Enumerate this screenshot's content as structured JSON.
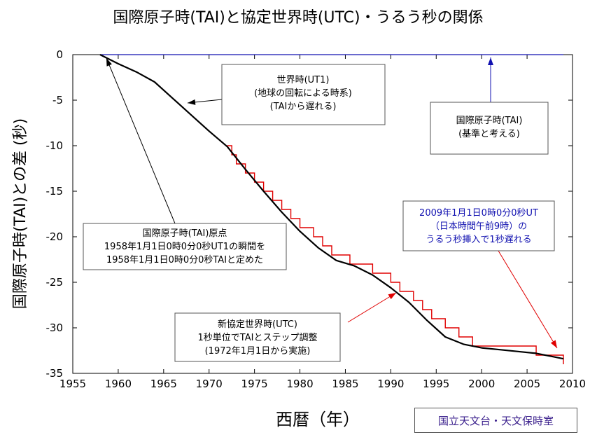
{
  "title": "国際原子時(TAI)と協定世界時(UTC)・うるう秒の関係",
  "credit": "国立天文台・天文保時室",
  "colors": {
    "tai": "#1010b0",
    "ut1": "#000000",
    "utc": "#e00000",
    "note_blue": "#1010b0"
  },
  "annotations": {
    "ut1": [
      "世界時(UT1)",
      "(地球の回転による時系)",
      "(TAIから遅れる)"
    ],
    "tai": [
      "国際原子時(TAI)",
      "(基準と考える)"
    ],
    "origin": [
      "国際原子時(TAI)原点",
      "1958年1月1日0時0分0秒UT1の瞬間を",
      "1958年1月1日0時0分0秒TAIと定めた"
    ],
    "leap2009": [
      "2009年1月1日0時0分0秒UT",
      "（日本時間午前9時）の",
      "うるう秒挿入で1秒遅れる"
    ],
    "utc": [
      "新協定世界時(UTC)",
      "1秒単位でTAIとステップ調整",
      "(1972年1月1日から実施)"
    ]
  },
  "chart_data": {
    "type": "line",
    "title": "国際原子時(TAI)と協定世界時(UTC)・うるう秒の関係",
    "xlabel": "西暦（年）",
    "ylabel": "国際原子時(TAI)との差 (秒)",
    "xlim": [
      1955,
      2010
    ],
    "ylim": [
      -35,
      0
    ],
    "xticks": [
      1955,
      1960,
      1965,
      1970,
      1975,
      1980,
      1985,
      1990,
      1995,
      2000,
      2005,
      2010
    ],
    "yticks": [
      0,
      -5,
      -10,
      -15,
      -20,
      -25,
      -30,
      -35
    ],
    "series": [
      {
        "name": "TAI",
        "x": [
          1958,
          2009
        ],
        "y": [
          0,
          0
        ]
      },
      {
        "name": "UT1",
        "x": [
          1958,
          1960,
          1962,
          1964,
          1966,
          1968,
          1970,
          1972,
          1974,
          1976,
          1978,
          1980,
          1982,
          1984,
          1986,
          1988,
          1990,
          1992,
          1994,
          1996,
          1998,
          2000,
          2002,
          2004,
          2006,
          2008,
          2009
        ],
        "y": [
          0,
          -1.0,
          -1.9,
          -3.0,
          -4.8,
          -6.6,
          -8.4,
          -10.1,
          -12.6,
          -15.0,
          -17.3,
          -19.4,
          -21.2,
          -22.6,
          -23.2,
          -24.2,
          -25.6,
          -27.2,
          -29.2,
          -31.0,
          -31.8,
          -32.2,
          -32.4,
          -32.6,
          -32.8,
          -33.2,
          -33.4
        ]
      },
      {
        "name": "UTC",
        "steps": [
          {
            "year": 1972.0,
            "value": -10
          },
          {
            "year": 1972.5,
            "value": -11
          },
          {
            "year": 1973.0,
            "value": -12
          },
          {
            "year": 1974.0,
            "value": -13
          },
          {
            "year": 1975.0,
            "value": -14
          },
          {
            "year": 1976.0,
            "value": -15
          },
          {
            "year": 1977.0,
            "value": -16
          },
          {
            "year": 1978.0,
            "value": -17
          },
          {
            "year": 1979.0,
            "value": -18
          },
          {
            "year": 1980.0,
            "value": -19
          },
          {
            "year": 1981.5,
            "value": -20
          },
          {
            "year": 1982.5,
            "value": -21
          },
          {
            "year": 1983.5,
            "value": -22
          },
          {
            "year": 1985.5,
            "value": -23
          },
          {
            "year": 1988.0,
            "value": -24
          },
          {
            "year": 1990.0,
            "value": -25
          },
          {
            "year": 1991.0,
            "value": -26
          },
          {
            "year": 1992.5,
            "value": -27
          },
          {
            "year": 1993.5,
            "value": -28
          },
          {
            "year": 1994.5,
            "value": -29
          },
          {
            "year": 1996.0,
            "value": -30
          },
          {
            "year": 1997.5,
            "value": -31
          },
          {
            "year": 1999.0,
            "value": -32
          },
          {
            "year": 2006.0,
            "value": -33
          },
          {
            "year": 2009.0,
            "value": -34
          }
        ],
        "end_year": 2009.0
      }
    ]
  }
}
